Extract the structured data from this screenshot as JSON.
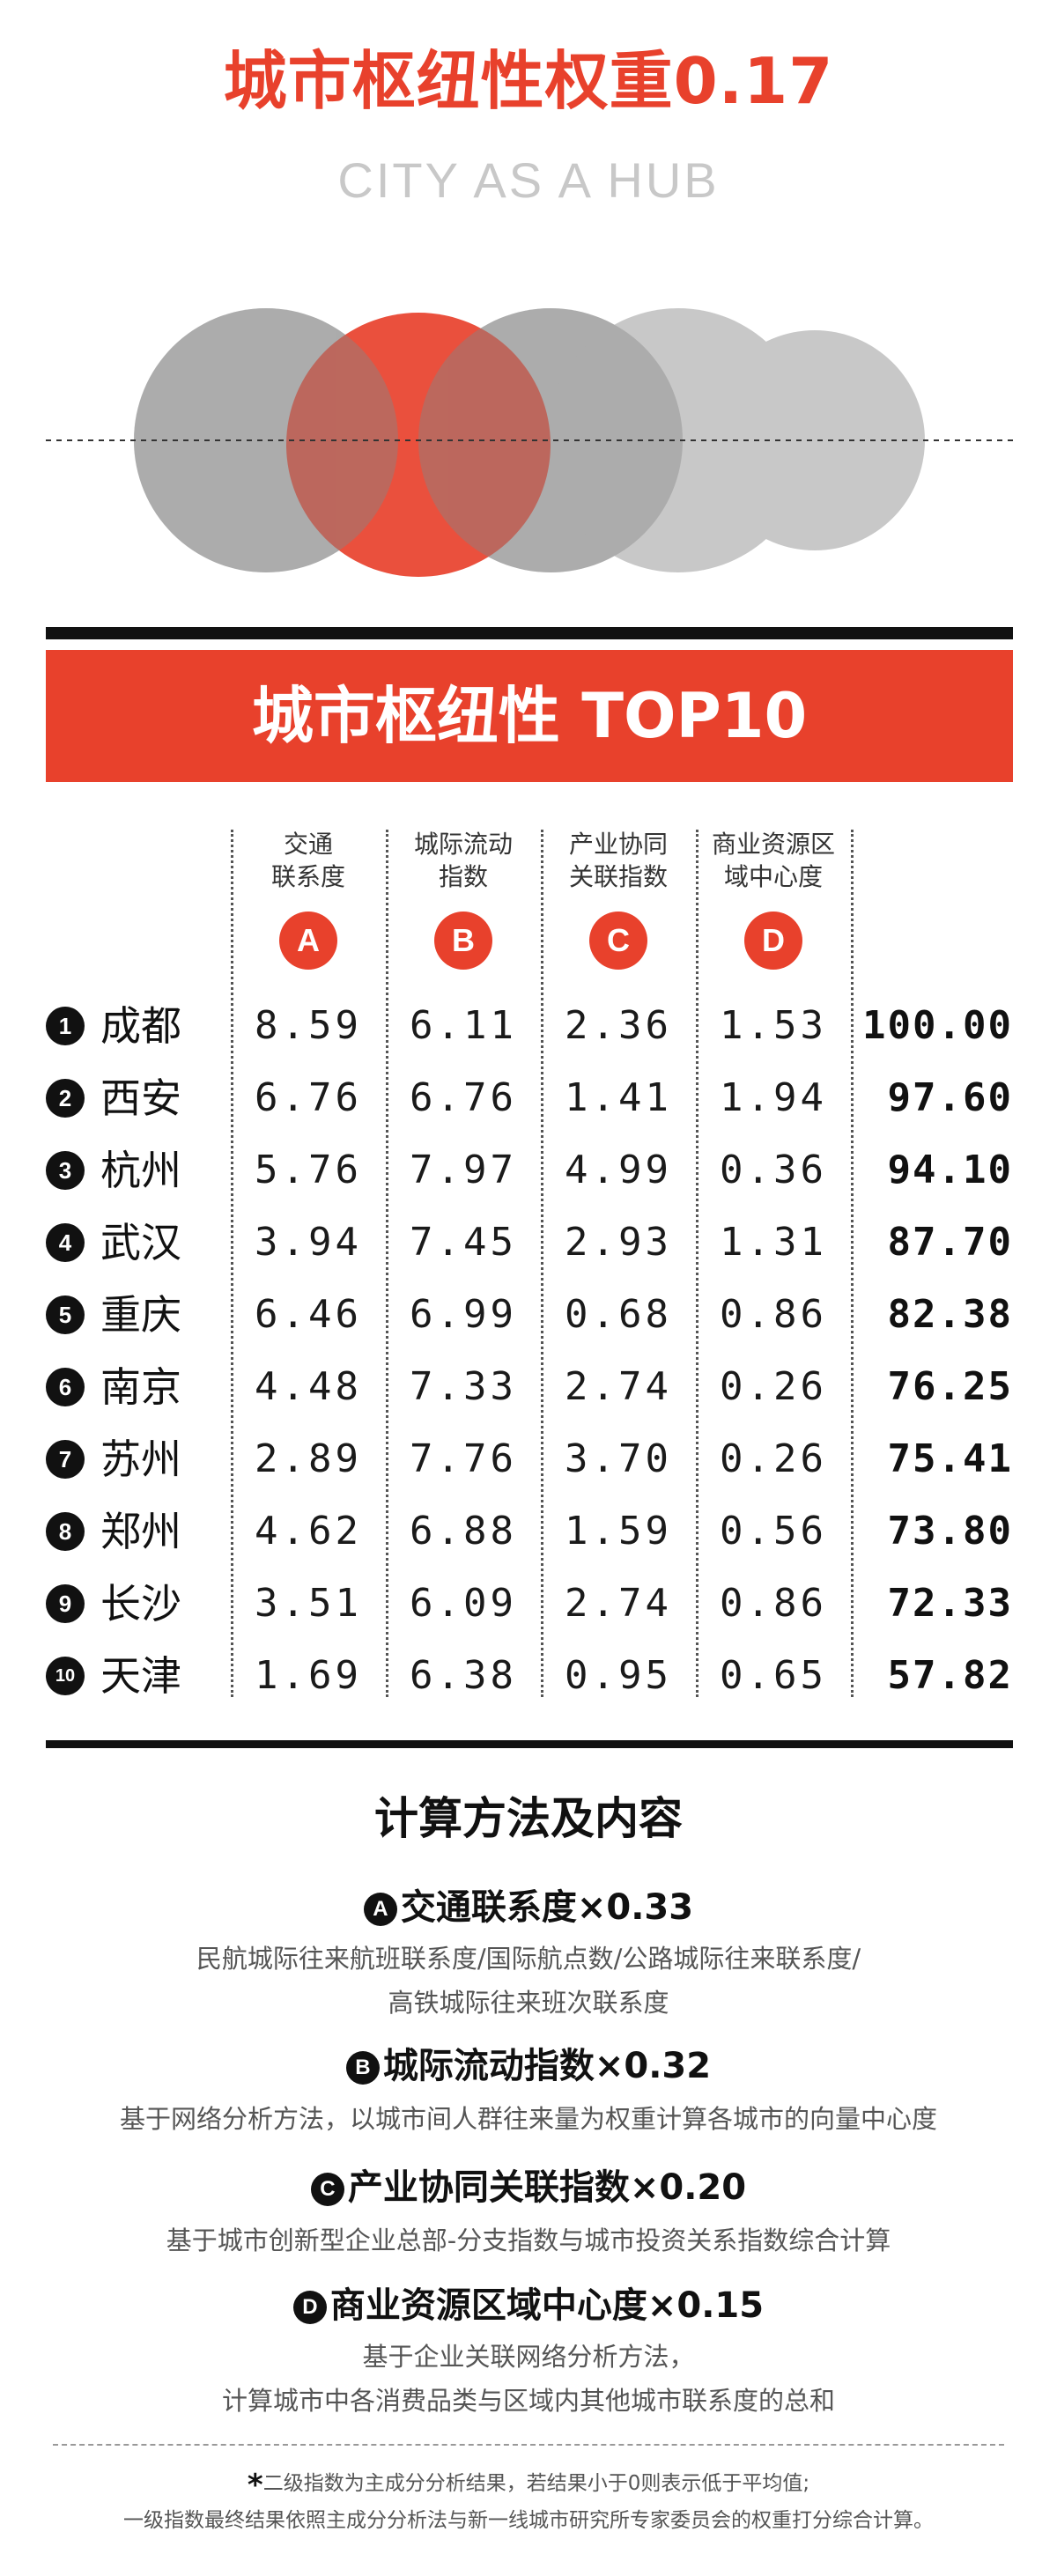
{
  "header": {
    "title": "城市枢纽性权重0.17",
    "subtitle": "CITY AS A HUB"
  },
  "colors": {
    "accent": "#e8412c",
    "circle_gray": "#b8b8b8",
    "dark": "#111111"
  },
  "banner": {
    "title": "城市枢纽性 TOP10"
  },
  "table": {
    "columns": [
      {
        "line1": "交通",
        "line2": "联系度",
        "badge": "A"
      },
      {
        "line1": "城际流动",
        "line2": "指数",
        "badge": "B"
      },
      {
        "line1": "产业协同",
        "line2": "关联指数",
        "badge": "C"
      },
      {
        "line1": "商业资源区",
        "line2": "域中心度",
        "badge": "D"
      }
    ],
    "rows": [
      {
        "rank": "1",
        "city": "成都",
        "a": "8.59",
        "b": "6.11",
        "c": "2.36",
        "d": "1.53",
        "total": "100.00"
      },
      {
        "rank": "2",
        "city": "西安",
        "a": "6.76",
        "b": "6.76",
        "c": "1.41",
        "d": "1.94",
        "total": "97.60"
      },
      {
        "rank": "3",
        "city": "杭州",
        "a": "5.76",
        "b": "7.97",
        "c": "4.99",
        "d": "0.36",
        "total": "94.10"
      },
      {
        "rank": "4",
        "city": "武汉",
        "a": "3.94",
        "b": "7.45",
        "c": "2.93",
        "d": "1.31",
        "total": "87.70"
      },
      {
        "rank": "5",
        "city": "重庆",
        "a": "6.46",
        "b": "6.99",
        "c": "0.68",
        "d": "0.86",
        "total": "82.38"
      },
      {
        "rank": "6",
        "city": "南京",
        "a": "4.48",
        "b": "7.33",
        "c": "2.74",
        "d": "0.26",
        "total": "76.25"
      },
      {
        "rank": "7",
        "city": "苏州",
        "a": "2.89",
        "b": "7.76",
        "c": "3.70",
        "d": "0.26",
        "total": "75.41"
      },
      {
        "rank": "8",
        "city": "郑州",
        "a": "4.62",
        "b": "6.88",
        "c": "1.59",
        "d": "0.56",
        "total": "73.80"
      },
      {
        "rank": "9",
        "city": "长沙",
        "a": "3.51",
        "b": "6.09",
        "c": "2.74",
        "d": "0.86",
        "total": "72.33"
      },
      {
        "rank": "10",
        "city": "天津",
        "a": "1.69",
        "b": "6.38",
        "c": "0.95",
        "d": "0.65",
        "total": "57.82"
      }
    ]
  },
  "method": {
    "title": "计算方法及内容",
    "items": [
      {
        "badge": "A",
        "heading": "交通联系度×0.33",
        "desc": [
          "民航城际往来航班联系度/国际航点数/公路城际往来联系度/",
          "高铁城际往来班次联系度"
        ]
      },
      {
        "badge": "B",
        "heading": "城际流动指数×0.32",
        "desc": [
          "基于网络分析方法，以城市间人群往来量为权重计算各城市的向量中心度"
        ]
      },
      {
        "badge": "C",
        "heading": "产业协同关联指数×0.20",
        "desc": [
          "基于城市创新型企业总部-分支指数与城市投资关系指数综合计算"
        ]
      },
      {
        "badge": "D",
        "heading": "商业资源区域中心度×0.15",
        "desc": [
          "基于企业关联网络分析方法，",
          "计算城市中各消费品类与区域内其他城市联系度的总和"
        ]
      }
    ]
  },
  "notes": {
    "star": "*",
    "line1": "二级指数为主成分分析结果，若结果小于0则表示低于平均值;",
    "line2": "一级指数最终结果依照主成分分析法与新一线城市研究所专家委员会的权重打分综合计算。"
  }
}
